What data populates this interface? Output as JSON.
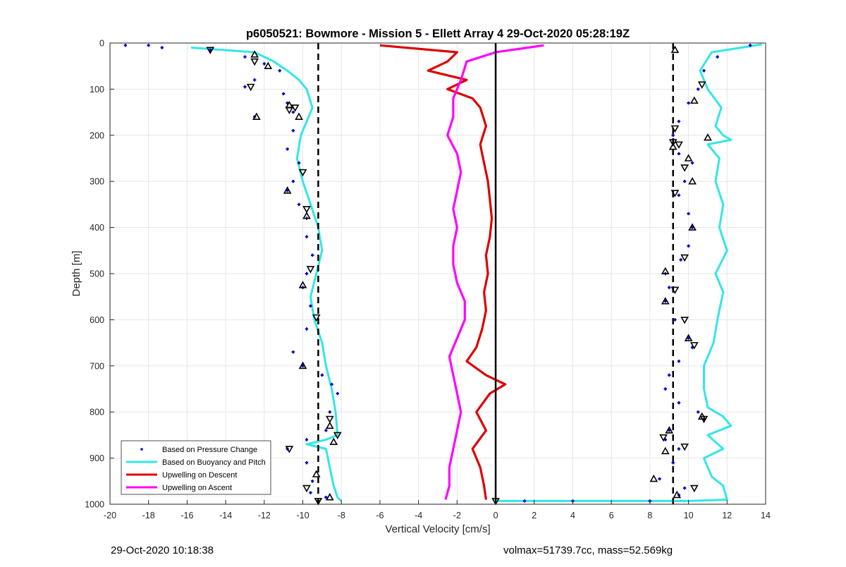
{
  "chart_data": {
    "type": "scatter",
    "title": "p6050521: Bowmore - Mission 5 - Ellett Array 4 29-Oct-2020 05:28:19Z",
    "xlabel": "Vertical Velocity [cm/s]",
    "ylabel": "Depth [m]",
    "xlim": [
      -20,
      14
    ],
    "ylim": [
      0,
      1000
    ],
    "y_reversed": true,
    "grid": true,
    "xticks": [
      "-20",
      "-18",
      "-16",
      "-14",
      "-12",
      "-10",
      "-8",
      "-6",
      "-4",
      "-2",
      "0",
      "2",
      "4",
      "6",
      "8",
      "10",
      "12",
      "14"
    ],
    "yticks": [
      "0",
      "100",
      "200",
      "300",
      "400",
      "500",
      "600",
      "700",
      "800",
      "900",
      "1000"
    ],
    "legend": {
      "placement": "bottom-left",
      "entries": [
        {
          "label": "Based on Pressure Change",
          "color": "#0000cc"
        },
        {
          "label": "Based on Buoyancy and Pitch",
          "color": "#33e6e6"
        },
        {
          "label": "Upwelling on Descent",
          "color": "#dd0000"
        },
        {
          "label": "Upwelling on Ascent",
          "color": "#ff00ff"
        }
      ]
    },
    "reference_lines": [
      {
        "x": -9.2,
        "style": "dashed",
        "color": "#000000"
      },
      {
        "x": 9.2,
        "style": "dashed",
        "color": "#000000"
      },
      {
        "x": 0,
        "style": "solid",
        "color": "#000000"
      }
    ],
    "series": [
      {
        "name": "Based on Buoyancy and Pitch",
        "side": "descent",
        "color": "#33e6e6",
        "points": [
          [
            -15.8,
            10
          ],
          [
            -12.5,
            20
          ],
          [
            -11.5,
            40
          ],
          [
            -10.8,
            60
          ],
          [
            -10.2,
            80
          ],
          [
            -9.8,
            100
          ],
          [
            -9.5,
            140
          ],
          [
            -9.8,
            170
          ],
          [
            -10.1,
            200
          ],
          [
            -10.3,
            250
          ],
          [
            -10.0,
            300
          ],
          [
            -9.6,
            350
          ],
          [
            -9.2,
            400
          ],
          [
            -9.0,
            450
          ],
          [
            -9.3,
            500
          ],
          [
            -9.6,
            550
          ],
          [
            -9.4,
            600
          ],
          [
            -9.0,
            650
          ],
          [
            -8.8,
            700
          ],
          [
            -8.5,
            750
          ],
          [
            -8.3,
            800
          ],
          [
            -8.2,
            850
          ],
          [
            -8.8,
            860
          ],
          [
            -9.8,
            870
          ],
          [
            -8.8,
            880
          ],
          [
            -8.6,
            920
          ],
          [
            -8.4,
            960
          ],
          [
            -8.2,
            985
          ],
          [
            -8.0,
            993
          ]
        ]
      },
      {
        "name": "Based on Buoyancy and Pitch",
        "side": "ascent",
        "color": "#33e6e6",
        "points": [
          [
            13.8,
            3
          ],
          [
            11.2,
            20
          ],
          [
            10.6,
            60
          ],
          [
            11.0,
            100
          ],
          [
            11.7,
            140
          ],
          [
            11.4,
            180
          ],
          [
            11.8,
            200
          ],
          [
            12.2,
            210
          ],
          [
            11.0,
            220
          ],
          [
            11.6,
            250
          ],
          [
            11.4,
            300
          ],
          [
            11.8,
            350
          ],
          [
            11.6,
            400
          ],
          [
            12.0,
            450
          ],
          [
            11.4,
            500
          ],
          [
            11.8,
            540
          ],
          [
            11.5,
            600
          ],
          [
            11.3,
            650
          ],
          [
            10.8,
            700
          ],
          [
            10.8,
            750
          ],
          [
            11.0,
            790
          ],
          [
            11.8,
            810
          ],
          [
            12.2,
            830
          ],
          [
            11.0,
            850
          ],
          [
            11.8,
            880
          ],
          [
            10.8,
            900
          ],
          [
            11.2,
            940
          ],
          [
            11.8,
            960
          ],
          [
            12.0,
            990
          ],
          [
            10.0,
            993
          ],
          [
            0,
            993
          ]
        ]
      },
      {
        "name": "Upwelling on Descent",
        "color": "#dd0000",
        "points": [
          [
            -6,
            5
          ],
          [
            -2,
            20
          ],
          [
            -2.5,
            40
          ],
          [
            -3.5,
            60
          ],
          [
            -1.5,
            80
          ],
          [
            -2.5,
            100
          ],
          [
            -1.2,
            120
          ],
          [
            -0.8,
            140
          ],
          [
            -0.5,
            180
          ],
          [
            -0.8,
            220
          ],
          [
            -0.6,
            260
          ],
          [
            -0.4,
            300
          ],
          [
            -0.3,
            340
          ],
          [
            -0.2,
            380
          ],
          [
            -0.3,
            420
          ],
          [
            -0.5,
            460
          ],
          [
            -0.4,
            500
          ],
          [
            -0.6,
            540
          ],
          [
            -0.5,
            580
          ],
          [
            -0.7,
            620
          ],
          [
            -1.0,
            660
          ],
          [
            -1.5,
            690
          ],
          [
            -0.5,
            720
          ],
          [
            0.5,
            740
          ],
          [
            -0.3,
            760
          ],
          [
            -1.0,
            800
          ],
          [
            -0.5,
            840
          ],
          [
            -1.2,
            880
          ],
          [
            -0.8,
            920
          ],
          [
            -0.6,
            960
          ],
          [
            -0.5,
            990
          ]
        ]
      },
      {
        "name": "Upwelling on Ascent",
        "color": "#ff00ff",
        "points": [
          [
            2.5,
            5
          ],
          [
            0,
            20
          ],
          [
            -1.5,
            40
          ],
          [
            -1.8,
            80
          ],
          [
            -2.2,
            120
          ],
          [
            -2.2,
            160
          ],
          [
            -2.5,
            200
          ],
          [
            -2.0,
            240
          ],
          [
            -1.8,
            280
          ],
          [
            -2.0,
            320
          ],
          [
            -2.2,
            360
          ],
          [
            -2.0,
            400
          ],
          [
            -2.2,
            440
          ],
          [
            -2.2,
            480
          ],
          [
            -2.0,
            520
          ],
          [
            -1.6,
            560
          ],
          [
            -1.6,
            600
          ],
          [
            -2.0,
            640
          ],
          [
            -2.4,
            680
          ],
          [
            -2.2,
            720
          ],
          [
            -2.0,
            760
          ],
          [
            -1.8,
            800
          ],
          [
            -2.0,
            840
          ],
          [
            -2.2,
            880
          ],
          [
            -2.4,
            920
          ],
          [
            -2.4,
            960
          ],
          [
            -2.6,
            990
          ]
        ]
      },
      {
        "name": "Based on Pressure Change",
        "side": "descent",
        "color": "#0000cc",
        "points": [
          [
            -19.2,
            5
          ],
          [
            -18.0,
            5
          ],
          [
            -17.3,
            10
          ],
          [
            -14.8,
            15
          ],
          [
            -13.0,
            30
          ],
          [
            -12.0,
            45
          ],
          [
            -11.2,
            60
          ],
          [
            -12.5,
            80
          ],
          [
            -13.0,
            95
          ],
          [
            -11.0,
            110
          ],
          [
            -10.8,
            130
          ],
          [
            -10.5,
            150
          ],
          [
            -12.5,
            160
          ],
          [
            -10.5,
            190
          ],
          [
            -10.8,
            230
          ],
          [
            -10.2,
            260
          ],
          [
            -10.5,
            300
          ],
          [
            -10.8,
            320
          ],
          [
            -10.2,
            350
          ],
          [
            -9.8,
            380
          ],
          [
            -9.8,
            420
          ],
          [
            -9.5,
            460
          ],
          [
            -9.8,
            500
          ],
          [
            -10.0,
            530
          ],
          [
            -9.6,
            570
          ],
          [
            -9.8,
            620
          ],
          [
            -10.5,
            670
          ],
          [
            -10.0,
            700
          ],
          [
            -9.0,
            720
          ],
          [
            -8.5,
            740
          ],
          [
            -8.2,
            760
          ],
          [
            -8.6,
            800
          ],
          [
            -8.8,
            840
          ],
          [
            -9.8,
            860
          ],
          [
            -10.8,
            880
          ],
          [
            -9.8,
            910
          ],
          [
            -9.5,
            950
          ],
          [
            -9.6,
            975
          ],
          [
            -8.8,
            985
          ],
          [
            -9.2,
            993
          ]
        ]
      },
      {
        "name": "Based on Pressure Change",
        "side": "ascent",
        "color": "#0000cc",
        "points": [
          [
            13.2,
            5
          ],
          [
            11.5,
            30
          ],
          [
            10.8,
            60
          ],
          [
            10.5,
            100
          ],
          [
            10.0,
            130
          ],
          [
            9.5,
            170
          ],
          [
            9.2,
            200
          ],
          [
            9.5,
            240
          ],
          [
            10.2,
            260
          ],
          [
            9.8,
            300
          ],
          [
            9.5,
            330
          ],
          [
            10.0,
            370
          ],
          [
            10.2,
            400
          ],
          [
            10.0,
            440
          ],
          [
            9.6,
            470
          ],
          [
            8.8,
            500
          ],
          [
            9.0,
            530
          ],
          [
            8.8,
            560
          ],
          [
            9.3,
            600
          ],
          [
            10.0,
            640
          ],
          [
            10.2,
            660
          ],
          [
            9.5,
            690
          ],
          [
            9.0,
            720
          ],
          [
            8.8,
            750
          ],
          [
            9.5,
            780
          ],
          [
            10.5,
            800
          ],
          [
            10.8,
            815
          ],
          [
            9.0,
            840
          ],
          [
            8.8,
            860
          ],
          [
            9.5,
            880
          ],
          [
            9.2,
            910
          ],
          [
            8.5,
            945
          ],
          [
            9.8,
            965
          ],
          [
            9.5,
            980
          ],
          [
            8.0,
            993
          ],
          [
            4.0,
            993
          ],
          [
            1.5,
            993
          ]
        ]
      }
    ],
    "markers": {
      "descent": [
        [
          -14.8,
          15
        ],
        [
          -12.5,
          25
        ],
        [
          -12.5,
          40
        ],
        [
          -11.8,
          50
        ],
        [
          -12.7,
          95
        ],
        [
          -10.7,
          135
        ],
        [
          -10.7,
          145
        ],
        [
          -10.2,
          160
        ],
        [
          -10.4,
          140
        ],
        [
          -12.4,
          160
        ],
        [
          -10.0,
          280
        ],
        [
          -10.8,
          320
        ],
        [
          -9.8,
          360
        ],
        [
          -9.8,
          375
        ],
        [
          -9.6,
          490
        ],
        [
          -10.0,
          525
        ],
        [
          -9.3,
          595
        ],
        [
          -10.0,
          700
        ],
        [
          -8.6,
          815
        ],
        [
          -8.6,
          830
        ],
        [
          -8.2,
          850
        ],
        [
          -8.4,
          865
        ],
        [
          -10.7,
          880
        ],
        [
          -9.3,
          935
        ],
        [
          -9.8,
          965
        ],
        [
          -8.6,
          985
        ],
        [
          -9.2,
          993
        ]
      ],
      "ascent": [
        [
          9.3,
          15
        ],
        [
          10.7,
          90
        ],
        [
          10.3,
          125
        ],
        [
          9.3,
          185
        ],
        [
          11.0,
          205
        ],
        [
          9.2,
          215
        ],
        [
          9.2,
          225
        ],
        [
          9.5,
          220
        ],
        [
          10.0,
          250
        ],
        [
          9.8,
          270
        ],
        [
          10.2,
          300
        ],
        [
          9.3,
          325
        ],
        [
          10.2,
          400
        ],
        [
          9.8,
          465
        ],
        [
          8.8,
          495
        ],
        [
          9.3,
          535
        ],
        [
          8.8,
          560
        ],
        [
          9.8,
          600
        ],
        [
          10.0,
          640
        ],
        [
          10.3,
          655
        ],
        [
          10.7,
          810
        ],
        [
          10.8,
          815
        ],
        [
          9.0,
          840
        ],
        [
          8.7,
          855
        ],
        [
          8.8,
          885
        ],
        [
          9.8,
          875
        ],
        [
          8.2,
          945
        ],
        [
          10.3,
          965
        ],
        [
          9.4,
          980
        ],
        [
          0,
          993
        ]
      ]
    }
  },
  "footer": {
    "timestamp": "29-Oct-2020 10:18:38",
    "mass_info": "volmax=51739.7cc, mass=52.569kg"
  }
}
